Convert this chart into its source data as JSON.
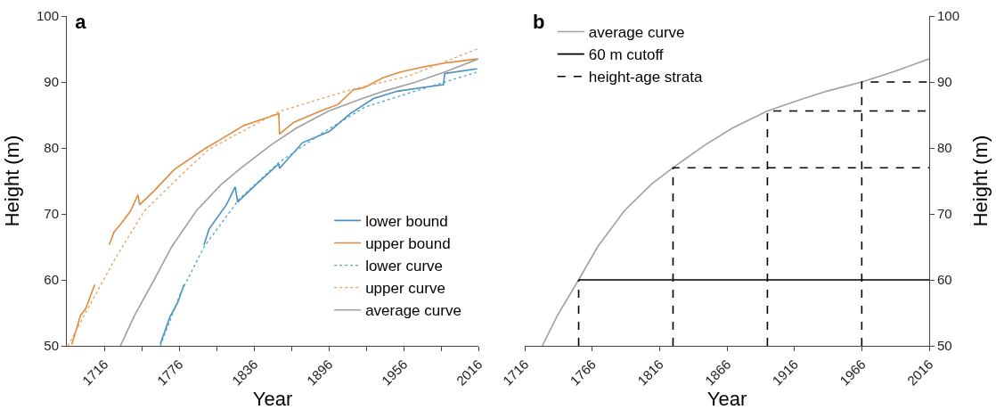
{
  "chart_data": [
    {
      "type": "line",
      "title": "a",
      "xlabel": "Year",
      "ylabel": "Height (m)",
      "xlim": [
        1686,
        2016
      ],
      "xticks": [
        1716,
        {
          "value": 1746,
          "label": null
        },
        1776,
        {
          "value": 1806,
          "label": null
        },
        1836,
        {
          "value": 1866,
          "label": null
        },
        1896,
        {
          "value": 1926,
          "label": null
        },
        1956,
        {
          "value": 1986,
          "label": null
        },
        2016
      ],
      "ylim": [
        50,
        100
      ],
      "yticks": [
        50,
        60,
        70,
        80,
        90,
        100
      ],
      "grid": false,
      "legend": "bottom right",
      "marker": "none",
      "series": [
        {
          "name": "lower bound",
          "color": "#4a8fc2",
          "line_style": "solid",
          "x": [
            1761,
            1768.5,
            1775,
            1780,
            1788,
            1796,
            1800,
            1814,
            1821,
            1823,
            1838,
            1856,
            1856.5,
            1875,
            1896.5,
            1913,
            1932,
            1951,
            1972,
            1988,
            1989,
            2015
          ],
          "values": [
            50.3,
            54.3,
            56.6,
            59.3,
            null,
            65.3,
            67.7,
            71.4,
            74.1,
            71.8,
            74.5,
            77.6,
            76.9,
            80.8,
            82.5,
            85.2,
            87.5,
            88.6,
            89.2,
            89.6,
            91.3,
            92.0
          ]
        },
        {
          "name": "upper bound",
          "color": "#e08a3c",
          "line_style": "solid",
          "x": [
            1690,
            1697,
            1701,
            1708.5,
            1714,
            1720,
            1724,
            1729,
            1737,
            1743,
            1744.5,
            1756,
            1772,
            1796,
            1812,
            1828,
            1856,
            1856.5,
            1868,
            1889.5,
            1903.5,
            1915.5,
            1925,
            1939,
            1953,
            1972,
            1990,
            2015
          ],
          "values": [
            50.2,
            54.6,
            55.6,
            59.3,
            null,
            65.3,
            67.3,
            68.4,
            70.4,
            72.9,
            71.4,
            73.5,
            76.7,
            79.8,
            81.6,
            83.4,
            85.2,
            82.1,
            83.9,
            85.6,
            86.6,
            88.8,
            89.2,
            90.6,
            91.5,
            92.3,
            92.9,
            93.5
          ]
        },
        {
          "name": "lower curve",
          "color": "#4aa8c8",
          "line_style": "dotted",
          "x": [
            1761,
            1777,
            1796,
            1824,
            1856,
            1889.5,
            1925,
            1960,
            2015
          ],
          "values": [
            50,
            57.9,
            65,
            72.2,
            77.8,
            82.1,
            86.2,
            88.3,
            91.5
          ]
        },
        {
          "name": "upper curve",
          "color": "#e8a060",
          "line_style": "dotted",
          "x": [
            1687,
            1701,
            1725,
            1748,
            1777,
            1800,
            1856,
            1913,
            1960,
            2015
          ],
          "values": [
            50,
            55,
            63.3,
            70.4,
            75.8,
            79.8,
            85.5,
            88.8,
            90.9,
            95
          ]
        },
        {
          "name": "average curve",
          "color": "#a0a0a0",
          "line_style": "solid",
          "x": [
            1729,
            1740,
            1756,
            1770,
            1790,
            1810,
            1826,
            1850,
            1870,
            1896,
            1920,
            1940,
            1966,
            1990,
            2016
          ],
          "values": [
            50,
            54.5,
            60,
            65,
            70.5,
            74.5,
            77,
            80.5,
            83,
            85.6,
            87.3,
            88.6,
            90,
            91.6,
            93.5
          ]
        }
      ]
    },
    {
      "type": "line",
      "title": "b",
      "xlabel": "Year",
      "y2label": "Height (m)",
      "xlim": [
        1716,
        2016
      ],
      "xticks": [
        1716,
        1766,
        1816,
        1866,
        1916,
        1966,
        2016
      ],
      "y2lim": [
        50,
        100
      ],
      "y2ticks": [
        50,
        60,
        70,
        80,
        90,
        100
      ],
      "grid": false,
      "legend": "top left",
      "marker": "none",
      "series": [
        {
          "name": "average curve",
          "color": "#a0a0a0",
          "line_style": "solid",
          "axis": "y2",
          "x": [
            1729,
            1740,
            1756,
            1770,
            1790,
            1810,
            1826,
            1850,
            1870,
            1896,
            1920,
            1940,
            1966,
            1990,
            2016
          ],
          "values": [
            50,
            54.5,
            60,
            65,
            70.5,
            74.5,
            77,
            80.5,
            83,
            85.6,
            87.3,
            88.6,
            90,
            91.6,
            93.5
          ]
        },
        {
          "name": "60 m cutoff",
          "color": "#000000",
          "line_style": "solid",
          "axis": "y2",
          "x": [
            1756,
            2016
          ],
          "values": [
            60,
            60
          ]
        },
        {
          "name": "height-age strata",
          "color": "#000000",
          "line_style": "dashed",
          "axis": "y2",
          "x": [
            1756,
            1756
          ],
          "values": [
            50,
            60
          ]
        },
        {
          "color": "#000000",
          "line_style": "dashed",
          "axis": "y2",
          "x": [
            1826,
            1826,
            2016
          ],
          "values": [
            50,
            77,
            77
          ]
        },
        {
          "color": "#000000",
          "line_style": "dashed",
          "axis": "y2",
          "x": [
            1896,
            1896,
            2016
          ],
          "values": [
            50,
            85.6,
            85.6
          ]
        },
        {
          "color": "#000000",
          "line_style": "dashed",
          "axis": "y2",
          "x": [
            1966,
            1966,
            2016
          ],
          "values": [
            50,
            90,
            90
          ]
        }
      ]
    }
  ]
}
